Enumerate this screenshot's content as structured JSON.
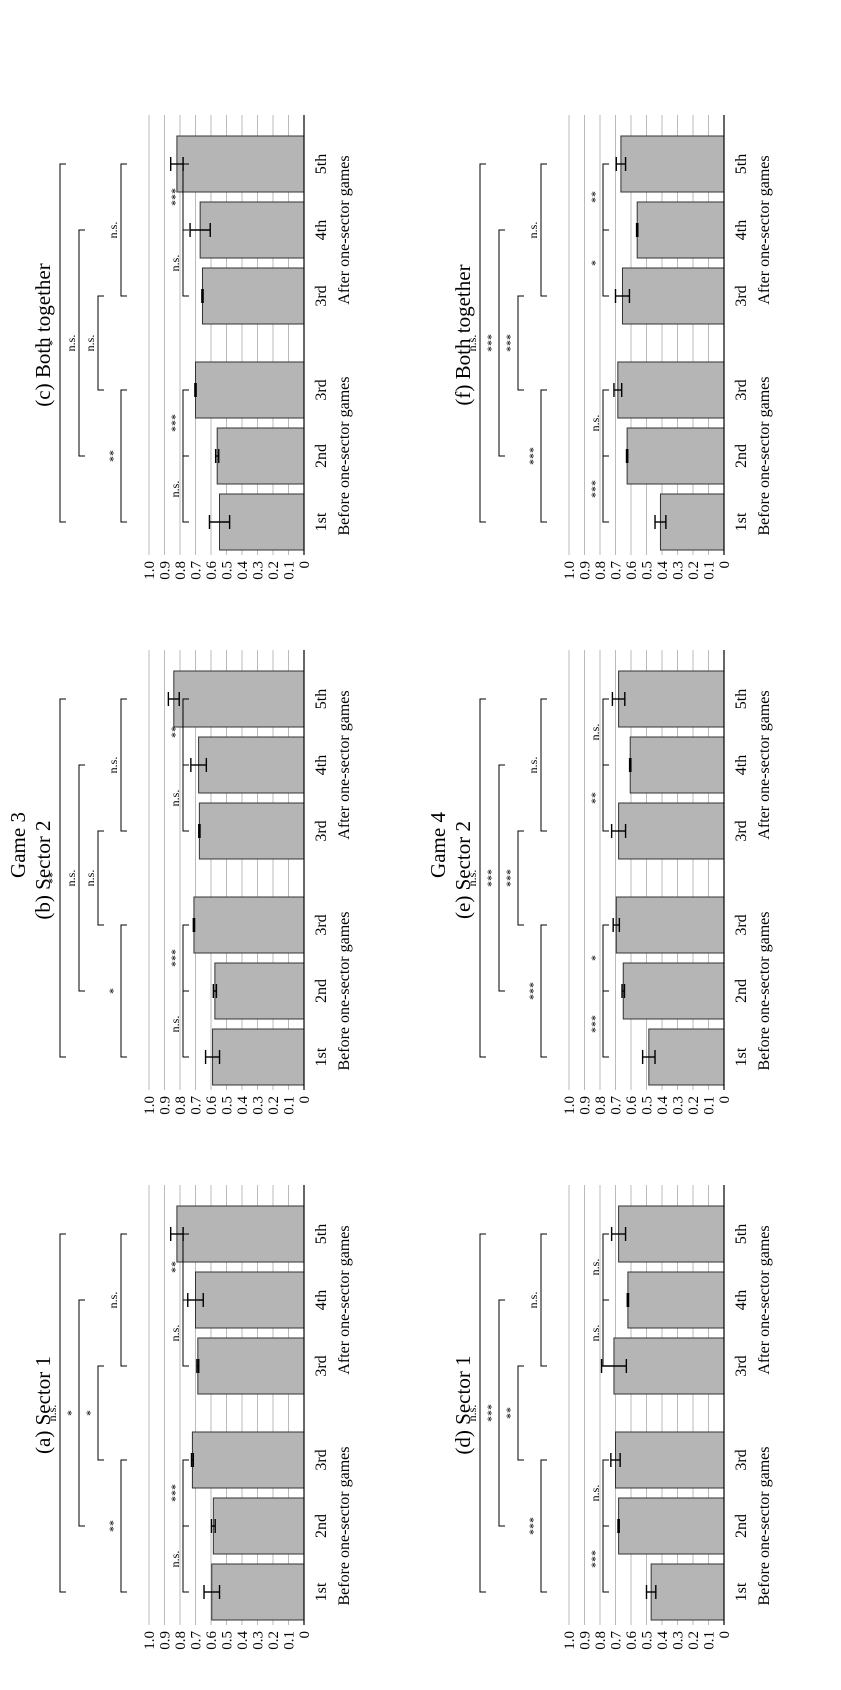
{
  "games": [
    {
      "title": "Game 3",
      "panels": [
        {
          "title": "(a) Sector 1",
          "chart_data": {
            "type": "bar",
            "categories": [
              "1st",
              "2nd",
              "3rd",
              "3rd",
              "4th",
              "5th"
            ],
            "groups": [
              "Before one-sector games",
              "After one-sector games"
            ],
            "values": [
              0.595,
              0.585,
              0.72,
              0.685,
              0.7,
              0.82
            ],
            "errors": [
              0.05,
              0.012,
              0.006,
              0.006,
              0.05,
              0.04
            ],
            "ylim": [
              0,
              1.0
            ],
            "yticks": [
              "0",
              "0.1",
              "0.2",
              "0.3",
              "0.4",
              "0.5",
              "0.6",
              "0.7",
              "0.8",
              "0.9",
              "1.0"
            ],
            "brackets": [
              {
                "from": 0,
                "to": 1,
                "label": "n.s."
              },
              {
                "from": 1,
                "to": 2,
                "label": "***"
              },
              {
                "from": 0,
                "to": 2,
                "label": "**"
              },
              {
                "from": 3,
                "to": 4,
                "label": "n.s."
              },
              {
                "from": 4,
                "to": 5,
                "label": "**"
              },
              {
                "from": 3,
                "to": 5,
                "label": "n.s."
              },
              {
                "from": 2,
                "to": 3,
                "label": "*"
              },
              {
                "from": 1,
                "to": 4,
                "label": "*"
              },
              {
                "from": 0,
                "to": 5,
                "label": "n.s."
              }
            ]
          }
        },
        {
          "title": "(b) Sector 2",
          "chart_data": {
            "type": "bar",
            "categories": [
              "1st",
              "2nd",
              "3rd",
              "3rd",
              "4th",
              "5th"
            ],
            "groups": [
              "Before one-sector games",
              "After one-sector games"
            ],
            "values": [
              0.59,
              0.575,
              0.71,
              0.675,
              0.68,
              0.84
            ],
            "errors": [
              0.045,
              0.01,
              0.004,
              0.004,
              0.05,
              0.035
            ],
            "ylim": [
              0,
              1.0
            ],
            "yticks": [
              "0",
              "0.1",
              "0.2",
              "0.3",
              "0.4",
              "0.5",
              "0.6",
              "0.7",
              "0.8",
              "0.9",
              "1.0"
            ],
            "brackets": [
              {
                "from": 0,
                "to": 1,
                "label": "n.s."
              },
              {
                "from": 1,
                "to": 2,
                "label": "***"
              },
              {
                "from": 0,
                "to": 2,
                "label": "*"
              },
              {
                "from": 3,
                "to": 4,
                "label": "n.s."
              },
              {
                "from": 4,
                "to": 5,
                "label": "**"
              },
              {
                "from": 3,
                "to": 5,
                "label": "n.s."
              },
              {
                "from": 2,
                "to": 3,
                "label": "n.s."
              },
              {
                "from": 1,
                "to": 4,
                "label": "n.s."
              },
              {
                "from": 0,
                "to": 5,
                "label": "**"
              }
            ]
          }
        },
        {
          "title": "(c) Both together",
          "chart_data": {
            "type": "bar",
            "categories": [
              "1st",
              "2nd",
              "3rd",
              "3rd",
              "4th",
              "5th"
            ],
            "groups": [
              "Before one-sector games",
              "After one-sector games"
            ],
            "values": [
              0.545,
              0.56,
              0.7,
              0.655,
              0.67,
              0.82
            ],
            "errors": [
              0.065,
              0.01,
              0.004,
              0.004,
              0.065,
              0.04
            ],
            "ylim": [
              0,
              1.0
            ],
            "yticks": [
              "0",
              "0.1",
              "0.2",
              "0.3",
              "0.4",
              "0.5",
              "0.6",
              "0.7",
              "0.8",
              "0.9",
              "1.0"
            ],
            "brackets": [
              {
                "from": 0,
                "to": 1,
                "label": "n.s."
              },
              {
                "from": 1,
                "to": 2,
                "label": "***"
              },
              {
                "from": 0,
                "to": 2,
                "label": "**"
              },
              {
                "from": 3,
                "to": 4,
                "label": "n.s."
              },
              {
                "from": 4,
                "to": 5,
                "label": "***"
              },
              {
                "from": 3,
                "to": 5,
                "label": "n.s."
              },
              {
                "from": 2,
                "to": 3,
                "label": "n.s."
              },
              {
                "from": 1,
                "to": 4,
                "label": "n.s."
              },
              {
                "from": 0,
                "to": 5,
                "label": "*"
              }
            ]
          }
        }
      ]
    },
    {
      "title": "Game 4",
      "panels": [
        {
          "title": "(d) Sector 1",
          "chart_data": {
            "type": "bar",
            "categories": [
              "1st",
              "2nd",
              "3rd",
              "3rd",
              "4th",
              "5th"
            ],
            "groups": [
              "Before one-sector games",
              "After one-sector games"
            ],
            "values": [
              0.47,
              0.68,
              0.7,
              0.71,
              0.62,
              0.68
            ],
            "errors": [
              0.03,
              0.004,
              0.03,
              0.08,
              0.004,
              0.045
            ],
            "ylim": [
              0,
              1.0
            ],
            "yticks": [
              "0",
              "0.1",
              "0.2",
              "0.3",
              "0.4",
              "0.5",
              "0.6",
              "0.7",
              "0.8",
              "0.9",
              "1.0"
            ],
            "brackets": [
              {
                "from": 0,
                "to": 1,
                "label": "***"
              },
              {
                "from": 1,
                "to": 2,
                "label": "n.s."
              },
              {
                "from": 0,
                "to": 2,
                "label": "***"
              },
              {
                "from": 3,
                "to": 4,
                "label": "n.s."
              },
              {
                "from": 4,
                "to": 5,
                "label": "n.s."
              },
              {
                "from": 3,
                "to": 5,
                "label": "n.s."
              },
              {
                "from": 2,
                "to": 3,
                "label": "**"
              },
              {
                "from": 1,
                "to": 4,
                "label": "***"
              },
              {
                "from": 0,
                "to": 5,
                "label": "n.s."
              }
            ]
          }
        },
        {
          "title": "(e) Sector 2",
          "chart_data": {
            "type": "bar",
            "categories": [
              "1st",
              "2nd",
              "3rd",
              "3rd",
              "4th",
              "5th"
            ],
            "groups": [
              "Before one-sector games",
              "After one-sector games"
            ],
            "values": [
              0.485,
              0.65,
              0.695,
              0.68,
              0.605,
              0.68
            ],
            "errors": [
              0.04,
              0.008,
              0.02,
              0.045,
              0.004,
              0.04
            ],
            "ylim": [
              0,
              1.0
            ],
            "yticks": [
              "0",
              "0.1",
              "0.2",
              "0.3",
              "0.4",
              "0.5",
              "0.6",
              "0.7",
              "0.8",
              "0.9",
              "1.0"
            ],
            "brackets": [
              {
                "from": 0,
                "to": 1,
                "label": "***"
              },
              {
                "from": 1,
                "to": 2,
                "label": "*"
              },
              {
                "from": 0,
                "to": 2,
                "label": "***"
              },
              {
                "from": 3,
                "to": 4,
                "label": "**"
              },
              {
                "from": 4,
                "to": 5,
                "label": "n.s."
              },
              {
                "from": 3,
                "to": 5,
                "label": "n.s."
              },
              {
                "from": 2,
                "to": 3,
                "label": "***"
              },
              {
                "from": 1,
                "to": 4,
                "label": "***"
              },
              {
                "from": 0,
                "to": 5,
                "label": "n.s."
              }
            ]
          }
        },
        {
          "title": "(f) Both together",
          "chart_data": {
            "type": "bar",
            "categories": [
              "1st",
              "2nd",
              "3rd",
              "3rd",
              "4th",
              "5th"
            ],
            "groups": [
              "Before one-sector games",
              "After one-sector games"
            ],
            "values": [
              0.41,
              0.625,
              0.685,
              0.655,
              0.56,
              0.665
            ],
            "errors": [
              0.035,
              0.004,
              0.025,
              0.045,
              0.004,
              0.03
            ],
            "ylim": [
              0,
              1.0
            ],
            "yticks": [
              "0",
              "0.1",
              "0.2",
              "0.3",
              "0.4",
              "0.5",
              "0.6",
              "0.7",
              "0.8",
              "0.9",
              "1.0"
            ],
            "brackets": [
              {
                "from": 0,
                "to": 1,
                "label": "***"
              },
              {
                "from": 1,
                "to": 2,
                "label": "n.s."
              },
              {
                "from": 0,
                "to": 2,
                "label": "***"
              },
              {
                "from": 3,
                "to": 4,
                "label": "*"
              },
              {
                "from": 4,
                "to": 5,
                "label": "**"
              },
              {
                "from": 3,
                "to": 5,
                "label": "n.s."
              },
              {
                "from": 2,
                "to": 3,
                "label": "***"
              },
              {
                "from": 1,
                "to": 4,
                "label": "***"
              },
              {
                "from": 0,
                "to": 5,
                "label": "n.s."
              }
            ]
          }
        }
      ]
    }
  ],
  "colors": {
    "bar_fill": "#b5b5b5",
    "bar_stroke": "#333333",
    "grid": "#bbbbbb",
    "ink": "#000000"
  }
}
